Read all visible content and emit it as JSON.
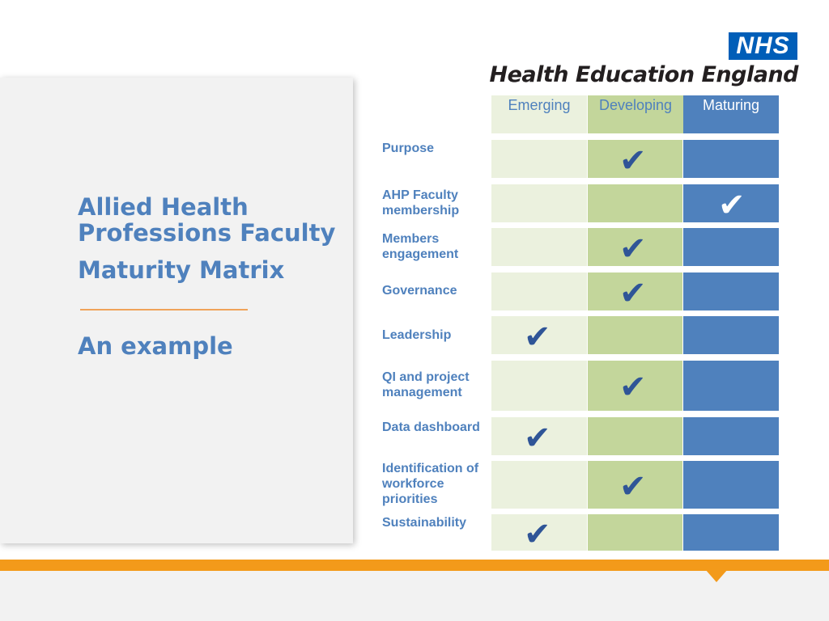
{
  "logo": {
    "badge": "NHS",
    "org": "Health Education England"
  },
  "title": {
    "line1": "Allied Health",
    "line2": "Professions Faculty",
    "line3": "Maturity Matrix",
    "subtitle": "An example"
  },
  "matrix": {
    "columns": [
      "Emerging",
      "Developing",
      "Maturing"
    ],
    "tick_glyph": "✔",
    "rows": [
      {
        "label": "Purpose",
        "level": "Developing"
      },
      {
        "label": "AHP Faculty membership",
        "level": "Maturing"
      },
      {
        "label": "Members engagement",
        "level": "Developing"
      },
      {
        "label": "Governance",
        "level": "Developing"
      },
      {
        "label": "Leadership",
        "level": "Emerging"
      },
      {
        "label": "QI and project management",
        "level": "Developing"
      },
      {
        "label": "Data dashboard",
        "level": "Emerging"
      },
      {
        "label": "Identification of workforce priorities",
        "level": "Developing"
      },
      {
        "label": "Sustainability",
        "level": "Emerging"
      }
    ]
  },
  "colors": {
    "emerging": "#ebf1de",
    "developing": "#c3d69b",
    "maturing": "#4f81bd",
    "accent_orange": "#f39a1a",
    "title_blue": "#4f81bd"
  }
}
